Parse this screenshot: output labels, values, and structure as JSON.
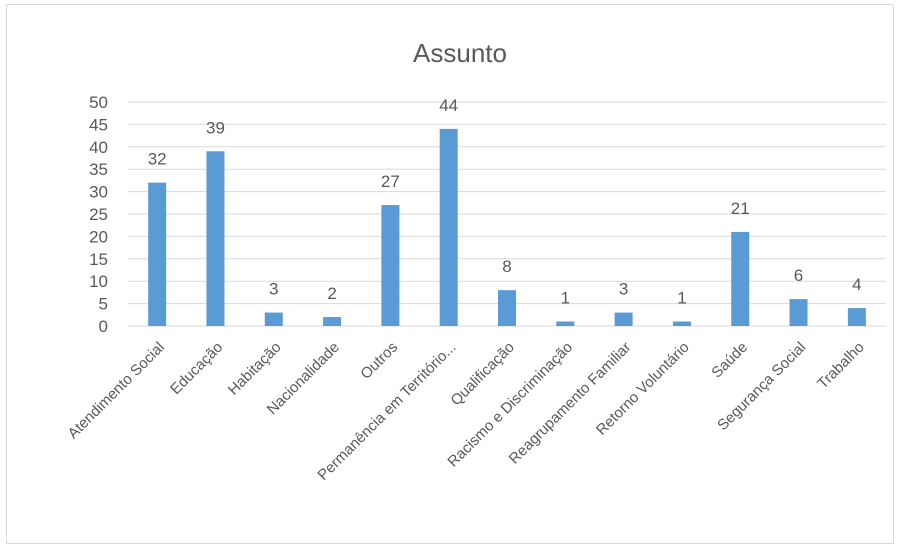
{
  "chart_data": {
    "type": "bar",
    "title": "Assunto",
    "xlabel": "",
    "ylabel": "",
    "ylim": [
      0,
      50
    ],
    "yticks": [
      0,
      5,
      10,
      15,
      20,
      25,
      30,
      35,
      40,
      45,
      50
    ],
    "grid": true,
    "categories": [
      "Atendimento Social",
      "Educação",
      "Habitação",
      "Nacionalidade",
      "Outros",
      "Permanência em Território...",
      "Qualificação",
      "Racismo e Discriminação",
      "Reagrupamento Familiar",
      "Retorno Voluntário",
      "Saúde",
      "Segurança Social",
      "Trabalho"
    ],
    "values": [
      32,
      39,
      3,
      2,
      27,
      44,
      8,
      1,
      3,
      1,
      21,
      6,
      4
    ],
    "colors": {
      "bar": "#5b9bd5",
      "grid": "#d9d9d9",
      "text": "#595959"
    }
  }
}
